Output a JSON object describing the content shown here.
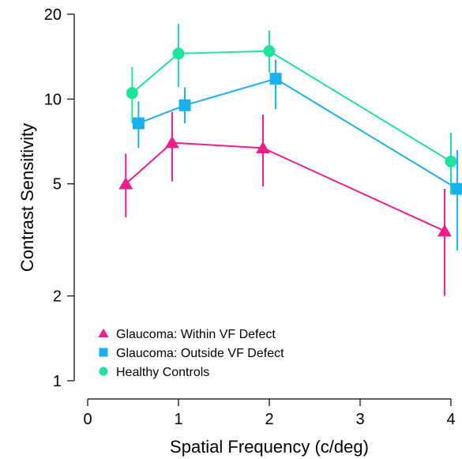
{
  "chart_data": {
    "type": "line",
    "title": "",
    "xlabel": "Spatial Frequency (c/deg)",
    "ylabel": "Contrast Sensitivity",
    "x_scale": "linear",
    "y_scale": "log",
    "xlim": [
      0,
      4.05
    ],
    "ylim": [
      1,
      20
    ],
    "x_ticks": [
      0,
      1,
      2,
      3,
      4
    ],
    "y_ticks": [
      1,
      2,
      5,
      10,
      20
    ],
    "grid": false,
    "legend_position": "bottom-left",
    "series": [
      {
        "name": "Glaucoma: Within VF Defect",
        "marker": "triangle",
        "color": "#ee1d8c",
        "x": [
          0.42,
          0.93,
          1.93,
          3.93
        ],
        "y": [
          5.0,
          7.0,
          6.7,
          3.4
        ],
        "err_low": [
          3.8,
          5.1,
          4.9,
          2.0
        ],
        "err_high": [
          6.4,
          9.0,
          8.8,
          4.8
        ]
      },
      {
        "name": "Glaucoma: Outside VF Defect",
        "marker": "square",
        "color": "#1ab0ee",
        "x": [
          0.56,
          1.07,
          2.07,
          4.07
        ],
        "y": [
          8.2,
          9.5,
          11.8,
          4.8
        ],
        "err_low": [
          6.7,
          8.2,
          9.2,
          2.9
        ],
        "err_high": [
          9.8,
          11.0,
          13.8,
          6.6
        ]
      },
      {
        "name": "Healthy Controls",
        "marker": "circle",
        "color": "#1ee39a",
        "x": [
          0.49,
          1.0,
          2.0,
          4.0
        ],
        "y": [
          10.5,
          14.5,
          14.8,
          6.0
        ],
        "err_low": [
          8.2,
          11.0,
          12.4,
          4.6
        ],
        "err_high": [
          13.0,
          18.5,
          17.5,
          7.6
        ]
      }
    ]
  }
}
